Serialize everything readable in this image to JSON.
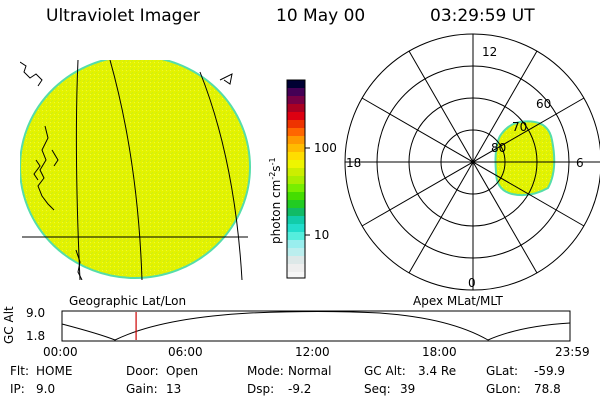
{
  "header": {
    "instrument": "Ultraviolet Imager",
    "date": "10 May 00",
    "time": "03:29:59 UT"
  },
  "panels": {
    "left_label": "Geographic Lat/Lon",
    "right_label": "Apex MLat/MLT"
  },
  "colorbar": {
    "unit": "photon cm",
    "unit_exp1": "-2",
    "unit_mid": "s",
    "unit_exp2": "-1",
    "tick_100": "100",
    "tick_10": "10"
  },
  "polar": {
    "mlt_12": "12",
    "mlt_18": "18",
    "mlt_6": "6",
    "mlt_0": "0",
    "lat_60": "60",
    "lat_70": "70",
    "lat_80": "80"
  },
  "timeline": {
    "ylabel": "GC Alt",
    "ymax": "9.0",
    "ymin": "1.8",
    "t0": "00:00",
    "t1": "06:00",
    "t2": "12:00",
    "t3": "18:00",
    "t4": "23:59",
    "current_time_hours": 3.5
  },
  "info": {
    "flt_label": "Flt:",
    "flt_value": "HOME",
    "door_label": "Door:",
    "door_value": "Open",
    "mode_label": "Mode:",
    "mode_value": "Normal",
    "gcalt_label": "GC Alt:",
    "gcalt_value": "3.4 Re",
    "glat_label": "GLat:",
    "glat_value": "-59.9",
    "ip_label": "IP:",
    "ip_value": "9.0",
    "gain_label": "Gain:",
    "gain_value": "13",
    "dsp_label": "Dsp:",
    "dsp_value": "-9.2",
    "seq_label": "Seq:",
    "seq_value": "39",
    "glon_label": "GLon:",
    "glon_value": "78.8"
  },
  "colors": {
    "fill": "#e6f500",
    "fill_edge": "#99ee44",
    "marker": "#cc0000"
  }
}
